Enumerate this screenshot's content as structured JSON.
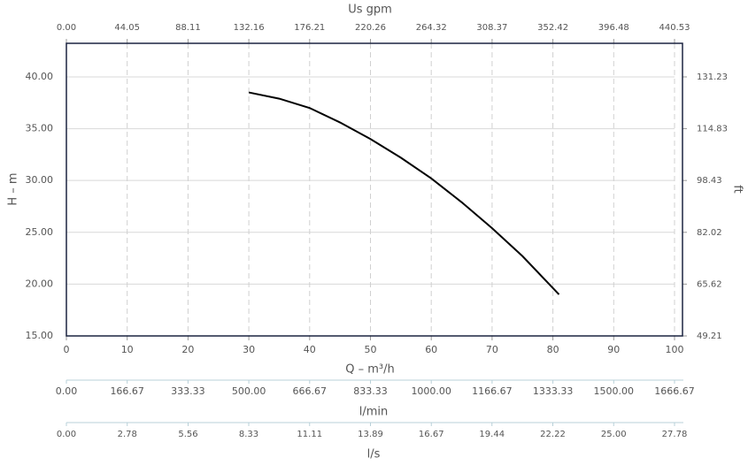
{
  "chart_data": {
    "type": "line",
    "x_title": "Q – m³/h",
    "y_title": "H – m",
    "y2_title": "ft",
    "x": [
      30,
      35,
      40,
      45,
      50,
      55,
      60,
      65,
      70,
      75,
      81
    ],
    "series": [
      {
        "color": "#000000",
        "values": [
          38.5,
          37.9,
          37.0,
          35.6,
          34.0,
          32.2,
          30.2,
          27.9,
          25.4,
          22.7,
          19.0
        ]
      }
    ],
    "xlim": [
      0,
      100
    ],
    "xticks": [
      0,
      10,
      20,
      30,
      40,
      50,
      60,
      70,
      80,
      90,
      100
    ],
    "ylim": [
      15,
      43.24
    ],
    "yticks": [
      {
        "value": 15,
        "label": "15.00"
      },
      {
        "value": 20,
        "label": "20.00"
      },
      {
        "value": 25,
        "label": "25.00"
      },
      {
        "value": 30,
        "label": "30.00"
      },
      {
        "value": 35,
        "label": "35.00"
      },
      {
        "value": 40,
        "label": "40.00"
      }
    ],
    "y2lim": [
      49.21,
      141.86
    ],
    "y2ticks": [
      49.21,
      65.62,
      82.02,
      98.43,
      114.83,
      131.23
    ],
    "grid": true,
    "top_axis": {
      "title": "Us gpm",
      "lim": [
        0,
        440.53
      ],
      "ticks": [
        {
          "value": 0,
          "label": "0.00"
        },
        44.05,
        88.11,
        132.16,
        176.21,
        220.26,
        264.32,
        308.37,
        352.42,
        396.48,
        440.53
      ]
    },
    "bottom_axes": [
      {
        "title": "l/min",
        "lim": [
          0,
          1666.67
        ],
        "ticks": [
          {
            "value": 0,
            "label": "0.00"
          },
          166.67,
          333.33,
          {
            "value": 500,
            "label": "500.00"
          },
          666.67,
          833.33,
          {
            "value": 1000,
            "label": "1000.00"
          },
          1166.67,
          1333.33,
          {
            "value": 1500,
            "label": "1500.00"
          },
          1666.67
        ]
      },
      {
        "title": "l/s",
        "lim": [
          0,
          27.78
        ],
        "ticks": [
          {
            "value": 0,
            "label": "0.00"
          },
          2.78,
          5.56,
          8.33,
          11.11,
          13.89,
          16.67,
          19.44,
          22.22,
          {
            "value": 25,
            "label": "25.00"
          },
          27.78
        ]
      }
    ]
  }
}
